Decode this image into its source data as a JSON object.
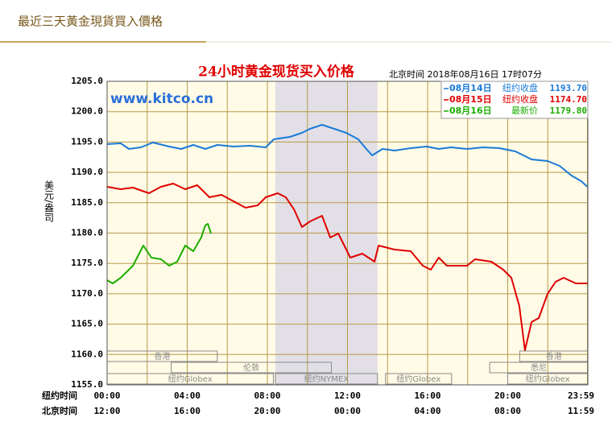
{
  "header": {
    "title": "最近三天黃金現貨買入價格"
  },
  "chart_data": {
    "type": "line",
    "title": "24小时黄金现货买入价格",
    "subtitle": "北京时间  2018年08月16日 17时07分",
    "watermark": "www.kitco.cn",
    "y_label": "美元/盎司",
    "x_row_labels": [
      "纽约时间",
      "北京时间"
    ],
    "xlim": [
      0,
      24
    ],
    "ylim": [
      1155,
      1205
    ],
    "grid": true,
    "xticks": [
      {
        "value": 0,
        "label": "00:00"
      },
      {
        "value": 4,
        "label": "04:00"
      },
      {
        "value": 8,
        "label": "08:00"
      },
      {
        "value": 12,
        "label": "12:00"
      },
      {
        "value": 16,
        "label": "16:00"
      },
      {
        "value": 20,
        "label": "20:00"
      },
      {
        "value": 23.98,
        "label": "23:59"
      }
    ],
    "xticks_secondary": [
      {
        "value": 0,
        "label": "12:00"
      },
      {
        "value": 4,
        "label": "16:00"
      },
      {
        "value": 8,
        "label": "20:00"
      },
      {
        "value": 12,
        "label": "00:00"
      },
      {
        "value": 16,
        "label": "04:00"
      },
      {
        "value": 20,
        "label": "08:00"
      },
      {
        "value": 23.98,
        "label": "11:59"
      }
    ],
    "xminor": [
      2,
      6,
      10,
      14,
      18,
      22
    ],
    "yticks": [
      {
        "value": 1155,
        "label": "1155.0"
      },
      {
        "value": 1160,
        "label": "1160.0"
      },
      {
        "value": 1165,
        "label": "1165.0"
      },
      {
        "value": 1170,
        "label": "1170.0"
      },
      {
        "value": 1175,
        "label": "1175.0"
      },
      {
        "value": 1180,
        "label": "1180.0"
      },
      {
        "value": 1185,
        "label": "1185.0"
      },
      {
        "value": 1190,
        "label": "1190.0"
      },
      {
        "value": 1195,
        "label": "1195.0"
      },
      {
        "value": 1200,
        "label": "1200.0"
      },
      {
        "value": 1205,
        "label": "1205.0"
      }
    ],
    "shade": [
      8.4,
      13.5
    ],
    "sessions": [
      {
        "label": "香港",
        "row": 0,
        "start": 0,
        "end": 5.5
      },
      {
        "label": "香港",
        "row": 0,
        "start": 20.6,
        "end": 24
      },
      {
        "label": "伦敦",
        "row": 1,
        "start": 3.2,
        "end": 11.2
      },
      {
        "label": "悉尼",
        "row": 1,
        "start": 19.1,
        "end": 24
      },
      {
        "label": "纽约Globex",
        "row": 2,
        "start": 0,
        "end": 8.3
      },
      {
        "label": "纽约NYMEX",
        "row": 2,
        "start": 8.4,
        "end": 13.5
      },
      {
        "label": "纽约Globex",
        "row": 2,
        "start": 13.9,
        "end": 17.2
      },
      {
        "label": "纽约Globex",
        "row": 2,
        "start": 20,
        "end": 24
      }
    ],
    "series": [
      {
        "name": "08月14日",
        "legend_label": "纽约收盘",
        "latest": {
          "value": 1193.7,
          "label": "1193.70"
        },
        "color": "#1a7ad8",
        "x": [
          0,
          0.68,
          1.09,
          1.69,
          2.29,
          3.09,
          3.7,
          4.3,
          4.9,
          5.51,
          6.31,
          7.12,
          7.92,
          8.32,
          9.13,
          9.73,
          10.13,
          10.73,
          11.34,
          11.94,
          12.54,
          12.94,
          13.23,
          13.75,
          14.35,
          15.16,
          15.96,
          16.56,
          17.17,
          17.97,
          18.77,
          19.58,
          20.38,
          21.19,
          21.99,
          22.59,
          23.18,
          23.67,
          23.98
        ],
        "values": [
          1194.66,
          1194.79,
          1193.86,
          1194.12,
          1194.92,
          1194.26,
          1193.86,
          1194.52,
          1193.86,
          1194.52,
          1194.26,
          1194.39,
          1194.12,
          1195.45,
          1195.85,
          1196.51,
          1197.18,
          1197.84,
          1197.18,
          1196.51,
          1195.45,
          1193.86,
          1192.8,
          1193.86,
          1193.59,
          1193.99,
          1194.26,
          1193.86,
          1194.12,
          1193.86,
          1194.12,
          1193.99,
          1193.46,
          1192.13,
          1191.87,
          1191.07,
          1189.48,
          1188.55,
          1187.62
        ]
      },
      {
        "name": "08月15日",
        "legend_label": "纽约收盘",
        "latest": {
          "value": 1174.7,
          "label": "1174.70"
        },
        "color": "#e00000",
        "x": [
          0,
          0.68,
          1.29,
          2.09,
          2.69,
          3.3,
          3.9,
          4.5,
          5.11,
          5.71,
          6.31,
          6.91,
          7.52,
          7.92,
          8.52,
          8.92,
          9.33,
          9.73,
          10.13,
          10.73,
          11.14,
          11.54,
          12.14,
          12.74,
          13.35,
          13.55,
          14.35,
          15.16,
          15.76,
          16.16,
          16.56,
          16.96,
          17.97,
          18.37,
          19.18,
          19.78,
          20.18,
          20.58,
          20.86,
          21.19,
          21.55,
          21.99,
          22.39,
          22.79,
          23.4,
          23.98
        ],
        "values": [
          1187.63,
          1187.23,
          1187.49,
          1186.56,
          1187.63,
          1188.16,
          1187.23,
          1187.89,
          1185.9,
          1186.3,
          1185.24,
          1184.18,
          1184.58,
          1185.9,
          1186.56,
          1185.9,
          1183.91,
          1181.0,
          1181.92,
          1182.85,
          1179.27,
          1179.93,
          1175.95,
          1176.62,
          1175.29,
          1177.94,
          1177.28,
          1177.02,
          1174.63,
          1173.97,
          1175.95,
          1174.63,
          1174.63,
          1175.69,
          1175.29,
          1173.97,
          1172.64,
          1168.0,
          1160.7,
          1165.34,
          1166.01,
          1169.99,
          1171.98,
          1172.64,
          1171.71,
          1171.71
        ]
      },
      {
        "name": "08月16日",
        "legend_label": "最新价",
        "latest": {
          "value": 1179.8,
          "label": "1179.80"
        },
        "color": "#1cae00",
        "x": [
          0,
          0.28,
          0.68,
          1.29,
          1.81,
          2.21,
          2.69,
          3.1,
          3.5,
          3.9,
          4.3,
          4.7,
          4.9,
          5.03,
          5.19
        ],
        "values": [
          1172.24,
          1171.71,
          1172.64,
          1174.63,
          1177.94,
          1175.95,
          1175.69,
          1174.63,
          1175.29,
          1177.94,
          1177.02,
          1179.27,
          1181.26,
          1181.52,
          1179.93
        ]
      }
    ]
  }
}
